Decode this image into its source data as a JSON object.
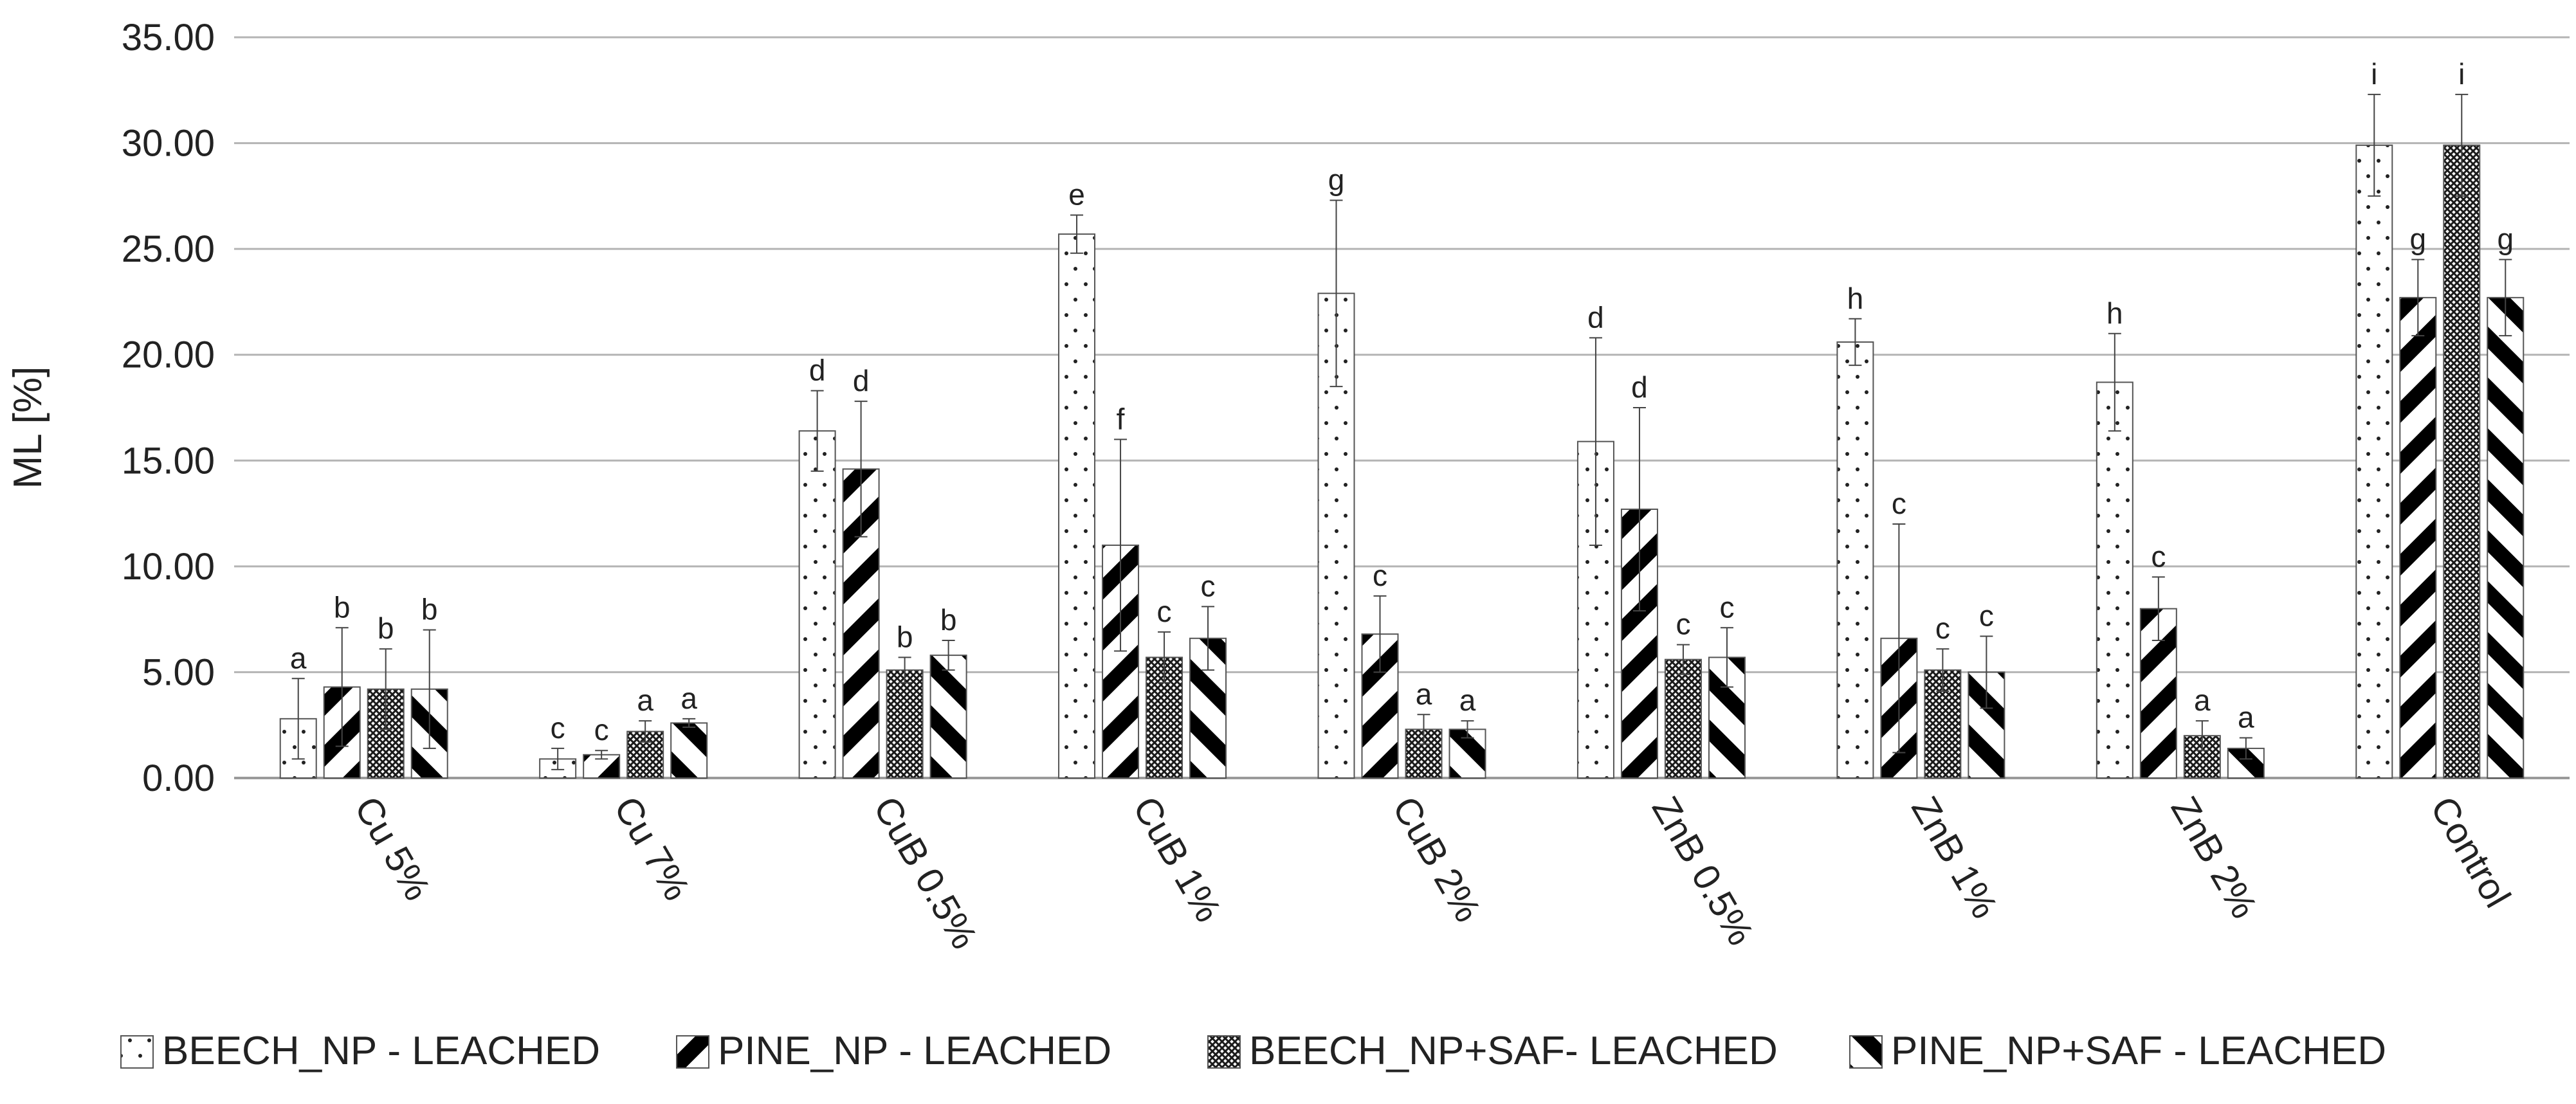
{
  "chart_data": {
    "type": "bar",
    "title": "",
    "xlabel": "",
    "ylabel": "ML [%]",
    "ylim": [
      0,
      35
    ],
    "yticks": [
      "0.00",
      "5.00",
      "10.00",
      "15.00",
      "20.00",
      "25.00",
      "30.00",
      "35.00"
    ],
    "grid": "horizontal",
    "legend_position": "bottom",
    "categories": [
      "Cu 5%",
      "Cu 7%",
      "CuB 0.5%",
      "CuB 1%",
      "CuB 2%",
      "ZnB 0.5%",
      "ZnB 1%",
      "ZnB 2%",
      "Control"
    ],
    "series": [
      {
        "name": "BEECH_NP - LEACHED",
        "pattern": "dots",
        "values": [
          2.8,
          0.9,
          16.4,
          25.7,
          22.9,
          15.9,
          20.6,
          18.7,
          29.9
        ],
        "errors": [
          1.9,
          0.5,
          1.9,
          0.9,
          4.4,
          4.9,
          1.1,
          2.3,
          2.4
        ],
        "labels": [
          "a",
          "c",
          "d",
          "e",
          "g",
          "d",
          "h",
          "h",
          "i"
        ]
      },
      {
        "name": "PINE_NP - LEACHED",
        "pattern": "wide-diagonal",
        "values": [
          4.3,
          1.1,
          14.6,
          11.0,
          6.8,
          12.7,
          6.6,
          8.0,
          22.7
        ],
        "errors": [
          2.8,
          0.2,
          3.2,
          5.0,
          1.8,
          4.8,
          5.4,
          1.5,
          1.8
        ],
        "labels": [
          "b",
          "c",
          "d",
          "f",
          "c",
          "d",
          "c",
          "c",
          "g"
        ]
      },
      {
        "name": "BEECH_NP+SAF- LEACHED",
        "pattern": "crosshatch",
        "values": [
          4.2,
          2.2,
          5.1,
          5.7,
          2.3,
          5.6,
          5.1,
          2.0,
          29.9
        ],
        "errors": [
          1.9,
          0.5,
          0.6,
          1.2,
          0.7,
          0.7,
          1.0,
          0.7,
          2.4
        ],
        "labels": [
          "b",
          "a",
          "b",
          "c",
          "a",
          "c",
          "c",
          "a",
          "i"
        ]
      },
      {
        "name": "PINE_NP+SAF - LEACHED",
        "pattern": "wide-back-diagonal",
        "values": [
          4.2,
          2.6,
          5.8,
          6.6,
          2.3,
          5.7,
          5.0,
          1.4,
          22.7
        ],
        "errors": [
          2.8,
          0.2,
          0.7,
          1.5,
          0.4,
          1.4,
          1.7,
          0.5,
          1.8
        ],
        "labels": [
          "b",
          "a",
          "b",
          "c",
          "a",
          "c",
          "c",
          "a",
          "g"
        ]
      }
    ]
  }
}
